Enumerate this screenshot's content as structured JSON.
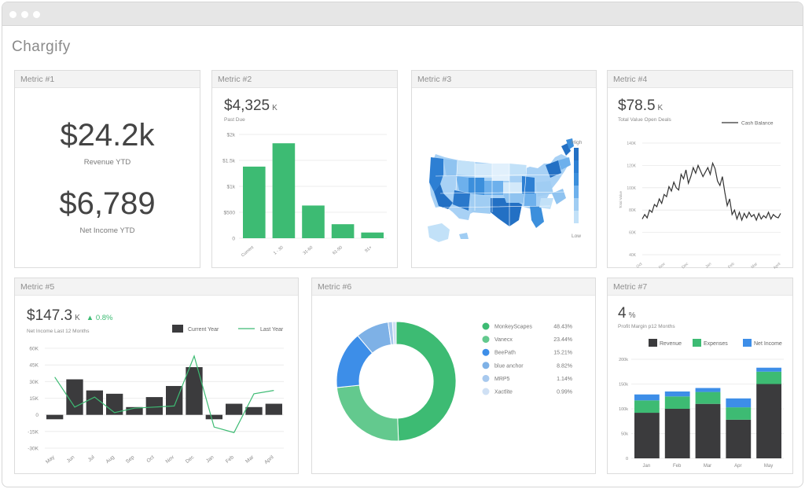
{
  "app": {
    "brand": "Chargify"
  },
  "colors": {
    "green": "#3dbb73",
    "dark": "#3b3b3d",
    "blue": "#3d8ee8",
    "grid": "#e8e8e8"
  },
  "metric1": {
    "title": "Metric #1",
    "value1": "$24.2k",
    "label1": "Revenue YTD",
    "value2": "$6,789",
    "label2": "Net Income YTD"
  },
  "metric2": {
    "title": "Metric #2",
    "value": "$4,325",
    "unit": "K",
    "subtitle": "Past Due",
    "chart_data": {
      "type": "bar",
      "categories": [
        "Current",
        "1 - 30",
        "31-60",
        "61-90",
        "91+"
      ],
      "values": [
        1380,
        1830,
        630,
        270,
        110
      ],
      "ylim": [
        0,
        2000
      ],
      "yticks": [
        "0",
        "$500",
        "$1k",
        "$1.5k",
        "$2k"
      ]
    }
  },
  "metric3": {
    "title": "Metric #3",
    "legend_high": "High",
    "legend_low": "Low"
  },
  "metric4": {
    "title": "Metric #4",
    "value": "$78.5",
    "unit": "K",
    "subtitle": "Total Value Open Deals",
    "legend": "Cash Balance",
    "chart_data": {
      "type": "line",
      "ylabel": "Total Value",
      "yticks": [
        "40K",
        "60K",
        "80K",
        "100K",
        "120K",
        "140K"
      ],
      "ylim": [
        40,
        140
      ],
      "xticks": [
        "Oct",
        "Nov",
        "Dec",
        "Jan",
        "Feb",
        "Mar",
        "April"
      ],
      "values": [
        72,
        76,
        73,
        80,
        78,
        85,
        83,
        90,
        86,
        94,
        92,
        101,
        97,
        105,
        100,
        98,
        112,
        108,
        116,
        104,
        110,
        118,
        113,
        120,
        115,
        110,
        114,
        118,
        112,
        122,
        117,
        106,
        102,
        110,
        96,
        84,
        90,
        76,
        80,
        72,
        78,
        71,
        77,
        73,
        78,
        74,
        76,
        71,
        77,
        72,
        75,
        73,
        78,
        72,
        76,
        74,
        73,
        77
      ]
    }
  },
  "metric5": {
    "title": "Metric #5",
    "value": "$147.3",
    "unit": "K",
    "delta": "▲ 0.8%",
    "subtitle": "Net Income Last 12 Months",
    "legend": [
      "Current Year",
      "Last Year"
    ],
    "chart_data": {
      "type": "bar",
      "categories": [
        "May",
        "Jun",
        "Jul",
        "Aug",
        "Sep",
        "Oct",
        "Nov",
        "Dec",
        "Jan",
        "Feb",
        "Mar",
        "April"
      ],
      "yticks": [
        "-30K",
        "-15K",
        "0",
        "15K",
        "30K",
        "45K",
        "60K"
      ],
      "ylim": [
        -30,
        60
      ],
      "series": [
        {
          "name": "Current Year",
          "values": [
            -4,
            32,
            22,
            19,
            7,
            16,
            26,
            43,
            -4,
            10,
            7,
            10
          ]
        },
        {
          "name": "Last Year",
          "values": [
            34,
            7,
            16,
            2,
            6,
            7,
            8,
            53,
            -11,
            -16,
            19,
            22
          ]
        }
      ]
    }
  },
  "metric6": {
    "title": "Metric #6",
    "chart_data": {
      "type": "pie",
      "series": [
        {
          "name": "MonkeyScapes",
          "pct": "48.43%",
          "value": 48.43,
          "color": "#3dbb73"
        },
        {
          "name": "Vanecx",
          "pct": "23.44%",
          "value": 23.44,
          "color": "#63c98e"
        },
        {
          "name": "BeePath",
          "pct": "15.21%",
          "value": 15.21,
          "color": "#3d8ee8"
        },
        {
          "name": "blue anchor",
          "pct": "8.82%",
          "value": 8.82,
          "color": "#7eb1e6"
        },
        {
          "name": "MRP5",
          "pct": "1.14%",
          "value": 1.14,
          "color": "#a8c9ee"
        },
        {
          "name": "Xactlite",
          "pct": "0.99%",
          "value": 0.99,
          "color": "#cfe0f4"
        }
      ]
    }
  },
  "metric7": {
    "title": "Metric #7",
    "value": "4",
    "unit": "%",
    "subtitle": "Profit Margin p12 Months",
    "legend": [
      "Revenue",
      "Expenses",
      "Net Income"
    ],
    "chart_data": {
      "type": "bar",
      "categories": [
        "Jan",
        "Feb",
        "Mar",
        "Apr",
        "May"
      ],
      "yticks": [
        "0",
        "50k",
        "100k",
        "150k",
        "200k"
      ],
      "ylim": [
        0,
        200
      ],
      "series": [
        {
          "name": "Revenue",
          "values": [
            92,
            100,
            110,
            78,
            150
          ],
          "color": "#3b3b3d"
        },
        {
          "name": "Expenses",
          "values": [
            25,
            25,
            24,
            25,
            25
          ],
          "color": "#3dbb73"
        },
        {
          "name": "Net Income",
          "values": [
            12,
            10,
            8,
            18,
            8
          ],
          "color": "#3d8ee8"
        }
      ]
    }
  }
}
